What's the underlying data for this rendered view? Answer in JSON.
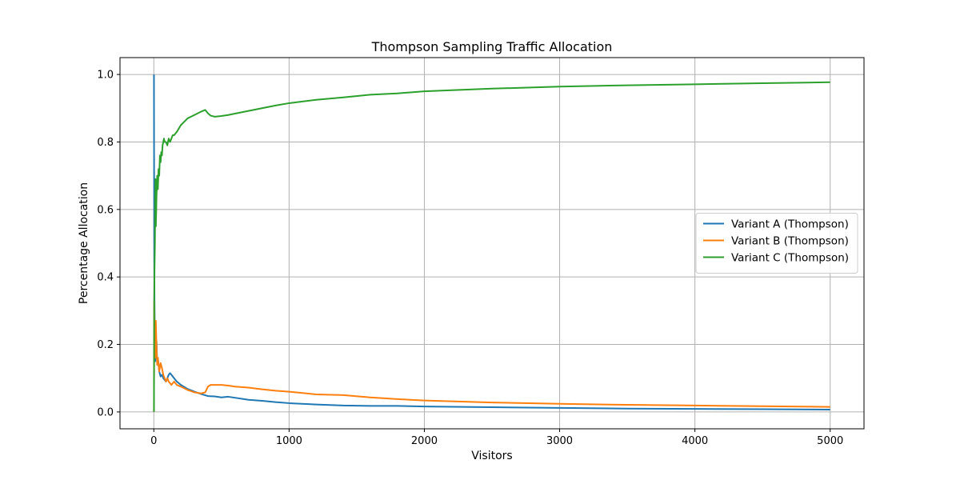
{
  "chart_data": {
    "type": "line",
    "title": "Thompson Sampling Traffic Allocation",
    "xlabel": "Visitors",
    "ylabel": "Percentage Allocation",
    "xlim": [
      -250,
      5250
    ],
    "ylim": [
      -0.05,
      1.05
    ],
    "xticks": [
      0,
      1000,
      2000,
      3000,
      4000,
      5000
    ],
    "xtick_labels": [
      "0",
      "1000",
      "2000",
      "3000",
      "4000",
      "5000"
    ],
    "yticks": [
      0.0,
      0.2,
      0.4,
      0.6,
      0.8,
      1.0
    ],
    "ytick_labels": [
      "0.0",
      "0.2",
      "0.4",
      "0.6",
      "0.8",
      "1.0"
    ],
    "grid": true,
    "legend_position": "center-right",
    "series": [
      {
        "name": "Variant A (Thompson)",
        "color": "#1f77b4",
        "points": [
          [
            1,
            1.0
          ],
          [
            3,
            0.5
          ],
          [
            5,
            0.33
          ],
          [
            8,
            0.21
          ],
          [
            10,
            0.15
          ],
          [
            15,
            0.18
          ],
          [
            20,
            0.21
          ],
          [
            25,
            0.14
          ],
          [
            30,
            0.16
          ],
          [
            40,
            0.12
          ],
          [
            50,
            0.105
          ],
          [
            60,
            0.11
          ],
          [
            70,
            0.1
          ],
          [
            80,
            0.095
          ],
          [
            90,
            0.09
          ],
          [
            100,
            0.1
          ],
          [
            110,
            0.11
          ],
          [
            120,
            0.115
          ],
          [
            130,
            0.11
          ],
          [
            140,
            0.105
          ],
          [
            150,
            0.1
          ],
          [
            170,
            0.09
          ],
          [
            200,
            0.08
          ],
          [
            250,
            0.068
          ],
          [
            300,
            0.06
          ],
          [
            350,
            0.053
          ],
          [
            400,
            0.047
          ],
          [
            450,
            0.046
          ],
          [
            500,
            0.043
          ],
          [
            550,
            0.045
          ],
          [
            600,
            0.042
          ],
          [
            700,
            0.036
          ],
          [
            800,
            0.033
          ],
          [
            900,
            0.029
          ],
          [
            1000,
            0.026
          ],
          [
            1200,
            0.022
          ],
          [
            1400,
            0.019
          ],
          [
            1600,
            0.018
          ],
          [
            1800,
            0.018
          ],
          [
            2000,
            0.016
          ],
          [
            2500,
            0.014
          ],
          [
            3000,
            0.012
          ],
          [
            3500,
            0.01
          ],
          [
            4000,
            0.009
          ],
          [
            4500,
            0.008
          ],
          [
            5000,
            0.007
          ]
        ]
      },
      {
        "name": "Variant B (Thompson)",
        "color": "#ff7f0e",
        "points": [
          [
            1,
            0.0
          ],
          [
            3,
            0.33
          ],
          [
            5,
            0.25
          ],
          [
            8,
            0.2
          ],
          [
            10,
            0.16
          ],
          [
            15,
            0.27
          ],
          [
            20,
            0.19
          ],
          [
            25,
            0.14
          ],
          [
            30,
            0.16
          ],
          [
            40,
            0.12
          ],
          [
            50,
            0.145
          ],
          [
            60,
            0.13
          ],
          [
            70,
            0.11
          ],
          [
            80,
            0.1
          ],
          [
            90,
            0.09
          ],
          [
            100,
            0.1
          ],
          [
            110,
            0.09
          ],
          [
            120,
            0.085
          ],
          [
            130,
            0.08
          ],
          [
            140,
            0.085
          ],
          [
            150,
            0.09
          ],
          [
            170,
            0.08
          ],
          [
            200,
            0.075
          ],
          [
            250,
            0.065
          ],
          [
            300,
            0.058
          ],
          [
            350,
            0.055
          ],
          [
            380,
            0.058
          ],
          [
            400,
            0.075
          ],
          [
            420,
            0.08
          ],
          [
            450,
            0.08
          ],
          [
            500,
            0.08
          ],
          [
            550,
            0.078
          ],
          [
            600,
            0.075
          ],
          [
            700,
            0.072
          ],
          [
            800,
            0.067
          ],
          [
            900,
            0.063
          ],
          [
            1000,
            0.06
          ],
          [
            1200,
            0.052
          ],
          [
            1400,
            0.05
          ],
          [
            1600,
            0.043
          ],
          [
            1800,
            0.038
          ],
          [
            2000,
            0.034
          ],
          [
            2500,
            0.028
          ],
          [
            3000,
            0.024
          ],
          [
            3500,
            0.021
          ],
          [
            4000,
            0.019
          ],
          [
            4500,
            0.017
          ],
          [
            5000,
            0.015
          ]
        ]
      },
      {
        "name": "Variant C (Thompson)",
        "color": "#2ca02c",
        "points": [
          [
            1,
            0.0
          ],
          [
            3,
            0.33
          ],
          [
            5,
            0.42
          ],
          [
            8,
            0.5
          ],
          [
            10,
            0.62
          ],
          [
            12,
            0.69
          ],
          [
            15,
            0.55
          ],
          [
            18,
            0.6
          ],
          [
            20,
            0.64
          ],
          [
            25,
            0.7
          ],
          [
            30,
            0.66
          ],
          [
            35,
            0.72
          ],
          [
            40,
            0.7
          ],
          [
            45,
            0.76
          ],
          [
            50,
            0.74
          ],
          [
            55,
            0.77
          ],
          [
            60,
            0.76
          ],
          [
            65,
            0.79
          ],
          [
            70,
            0.8
          ],
          [
            75,
            0.81
          ],
          [
            80,
            0.8
          ],
          [
            90,
            0.8
          ],
          [
            100,
            0.79
          ],
          [
            110,
            0.81
          ],
          [
            120,
            0.8
          ],
          [
            130,
            0.81
          ],
          [
            140,
            0.82
          ],
          [
            150,
            0.82
          ],
          [
            170,
            0.83
          ],
          [
            200,
            0.85
          ],
          [
            250,
            0.87
          ],
          [
            300,
            0.88
          ],
          [
            350,
            0.89
          ],
          [
            380,
            0.895
          ],
          [
            400,
            0.885
          ],
          [
            420,
            0.878
          ],
          [
            450,
            0.875
          ],
          [
            500,
            0.877
          ],
          [
            550,
            0.88
          ],
          [
            600,
            0.884
          ],
          [
            700,
            0.892
          ],
          [
            800,
            0.9
          ],
          [
            900,
            0.908
          ],
          [
            1000,
            0.915
          ],
          [
            1200,
            0.925
          ],
          [
            1400,
            0.932
          ],
          [
            1600,
            0.94
          ],
          [
            1800,
            0.944
          ],
          [
            2000,
            0.95
          ],
          [
            2500,
            0.958
          ],
          [
            3000,
            0.964
          ],
          [
            3500,
            0.968
          ],
          [
            4000,
            0.971
          ],
          [
            4500,
            0.974
          ],
          [
            5000,
            0.977
          ]
        ]
      }
    ]
  }
}
